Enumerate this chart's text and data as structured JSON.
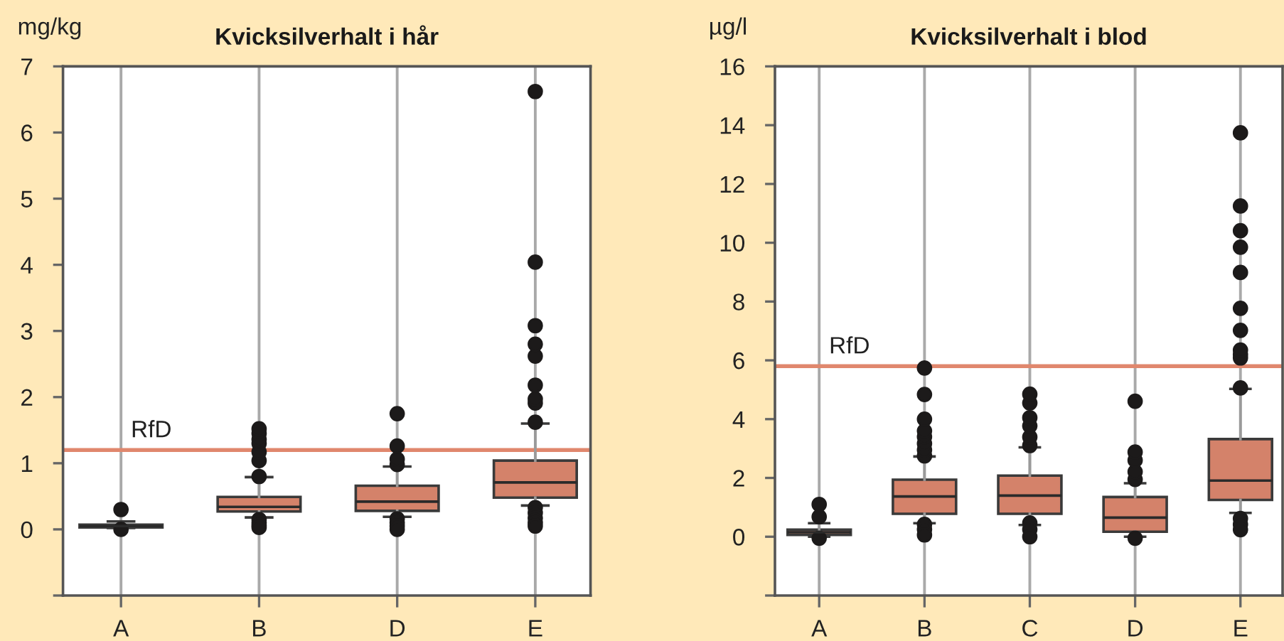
{
  "chart_data": [
    {
      "type": "box",
      "title": "Kvicksilverhalt i hår",
      "ylabel": "mg/kg",
      "categories": [
        "A",
        "B",
        "D",
        "E"
      ],
      "series": [
        {
          "color": "#d4826a",
          "boxes": [
            {
              "low": 0.02,
              "q1": 0.03,
              "median": 0.05,
              "q3": 0.07,
              "high": 0.12,
              "outliers": [
                0.3,
                0.0
              ]
            },
            {
              "low": 0.18,
              "q1": 0.27,
              "median": 0.34,
              "q3": 0.49,
              "high": 0.79,
              "outliers": [
                0.8,
                1.04,
                1.17,
                1.3,
                1.36,
                1.45,
                1.52,
                0.15,
                0.1,
                0.06,
                0.03
              ]
            },
            {
              "low": 0.19,
              "q1": 0.28,
              "median": 0.42,
              "q3": 0.66,
              "high": 0.95,
              "outliers": [
                0.98,
                1.06,
                1.26,
                1.75,
                0.16,
                0.1,
                0.05,
                0.0
              ]
            },
            {
              "low": 0.36,
              "q1": 0.48,
              "median": 0.71,
              "q3": 1.04,
              "high": 1.6,
              "outliers": [
                1.62,
                1.91,
                1.97,
                2.18,
                2.62,
                2.8,
                3.08,
                4.04,
                6.62,
                0.33,
                0.25,
                0.17,
                0.1,
                0.05
              ]
            }
          ]
        }
      ],
      "ylim": [
        -1,
        7
      ],
      "yticks": [
        {
          "value": -1,
          "label": null
        },
        0,
        1,
        2,
        3,
        4,
        5,
        6,
        7
      ],
      "grid": "x",
      "ref_lines": [
        {
          "axis": "y",
          "value": 1.2,
          "label": "RfD",
          "color": "#e0876d"
        }
      ]
    },
    {
      "type": "box",
      "title": "Kvicksilverhalt i blod",
      "ylabel": "µg/l",
      "categories": [
        "A",
        "B",
        "C",
        "D",
        "E"
      ],
      "series": [
        {
          "color": "#d4826a",
          "boxes": [
            {
              "low": 0.0,
              "q1": 0.06,
              "median": 0.15,
              "q3": 0.24,
              "high": 0.46,
              "outliers": [
                0.68,
                1.1,
                -0.05
              ]
            },
            {
              "low": 0.46,
              "q1": 0.78,
              "median": 1.37,
              "q3": 1.94,
              "high": 2.73,
              "outliers": [
                2.75,
                2.95,
                3.17,
                3.4,
                3.6,
                4.0,
                4.84,
                5.74,
                0.42,
                0.25,
                0.06
              ]
            },
            {
              "low": 0.4,
              "q1": 0.78,
              "median": 1.4,
              "q3": 2.08,
              "high": 3.04,
              "outliers": [
                3.1,
                3.39,
                3.77,
                4.05,
                4.55,
                4.85,
                0.47,
                0.25,
                0.0
              ]
            },
            {
              "low": 0.0,
              "q1": 0.17,
              "median": 0.65,
              "q3": 1.35,
              "high": 1.82,
              "outliers": [
                1.95,
                2.21,
                2.6,
                2.88,
                4.61,
                -0.05
              ]
            },
            {
              "low": 0.81,
              "q1": 1.25,
              "median": 1.91,
              "q3": 3.32,
              "high": 5.03,
              "outliers": [
                5.06,
                6.08,
                6.2,
                6.35,
                7.02,
                7.77,
                8.99,
                9.85,
                10.41,
                11.25,
                13.74,
                0.62,
                0.42,
                0.24
              ]
            }
          ]
        }
      ],
      "ylim": [
        -2,
        16
      ],
      "yticks": [
        {
          "value": -2,
          "label": null
        },
        0,
        2,
        4,
        6,
        8,
        10,
        12,
        14,
        16
      ],
      "grid": "x",
      "ref_lines": [
        {
          "axis": "y",
          "value": 5.8,
          "label": "RfD",
          "color": "#e0876d"
        }
      ]
    }
  ]
}
